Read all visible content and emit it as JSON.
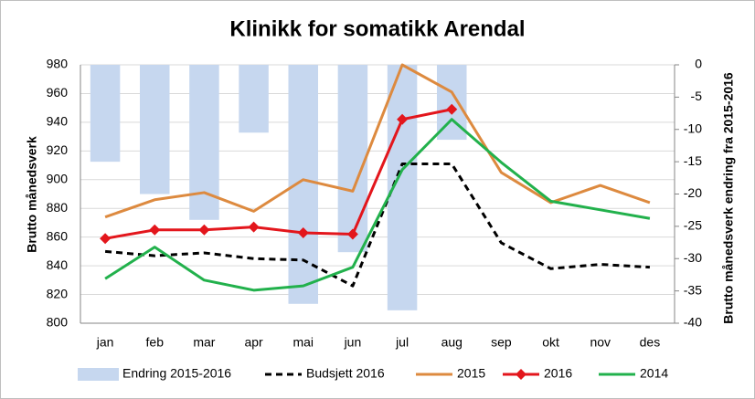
{
  "chart_data": {
    "type": "bar-line",
    "title": "Klinikk for somatikk Arendal",
    "y_label": "Brutto månedsverk",
    "y2_label": "Brutto månedsverk endring fra 2015-2016",
    "categories": [
      "jan",
      "feb",
      "mar",
      "apr",
      "mai",
      "jun",
      "jul",
      "aug",
      "sep",
      "okt",
      "nov",
      "des"
    ],
    "ylim": [
      800,
      980
    ],
    "yticks": [
      800,
      820,
      840,
      860,
      880,
      900,
      920,
      940,
      960,
      980
    ],
    "y2lim": [
      -40,
      0
    ],
    "y2ticks": [
      -40,
      -35,
      -30,
      -25,
      -20,
      -15,
      -10,
      -5,
      0
    ],
    "grid": true,
    "legend": "bottom",
    "series": [
      {
        "name": "Endring 2015-2016",
        "type": "bar",
        "axis": "y2",
        "color": "#c6d7ef",
        "values": [
          -15,
          -20,
          -24,
          -10.5,
          -37,
          -29,
          -38,
          -11.6,
          null,
          null,
          null,
          null
        ]
      },
      {
        "name": "Budsjett 2016",
        "type": "line",
        "color": "#000000",
        "dash": true,
        "values": [
          850,
          847,
          849,
          845,
          844,
          826,
          911,
          911,
          856,
          838,
          841,
          839
        ]
      },
      {
        "name": "2015",
        "type": "line",
        "color": "#dd8a3f",
        "values": [
          874,
          886,
          891,
          878,
          900,
          892,
          980,
          961,
          905,
          884,
          896,
          884
        ]
      },
      {
        "name": "2016",
        "type": "line",
        "color": "#e3161c",
        "marker": "diamond",
        "values": [
          859,
          865,
          865,
          867,
          863,
          862,
          942,
          949,
          null,
          null,
          null,
          null
        ]
      },
      {
        "name": "2014",
        "type": "line",
        "color": "#22b14c",
        "values": [
          831,
          853,
          830,
          823,
          826,
          839,
          907,
          942,
          912,
          885,
          879,
          873
        ]
      }
    ]
  }
}
